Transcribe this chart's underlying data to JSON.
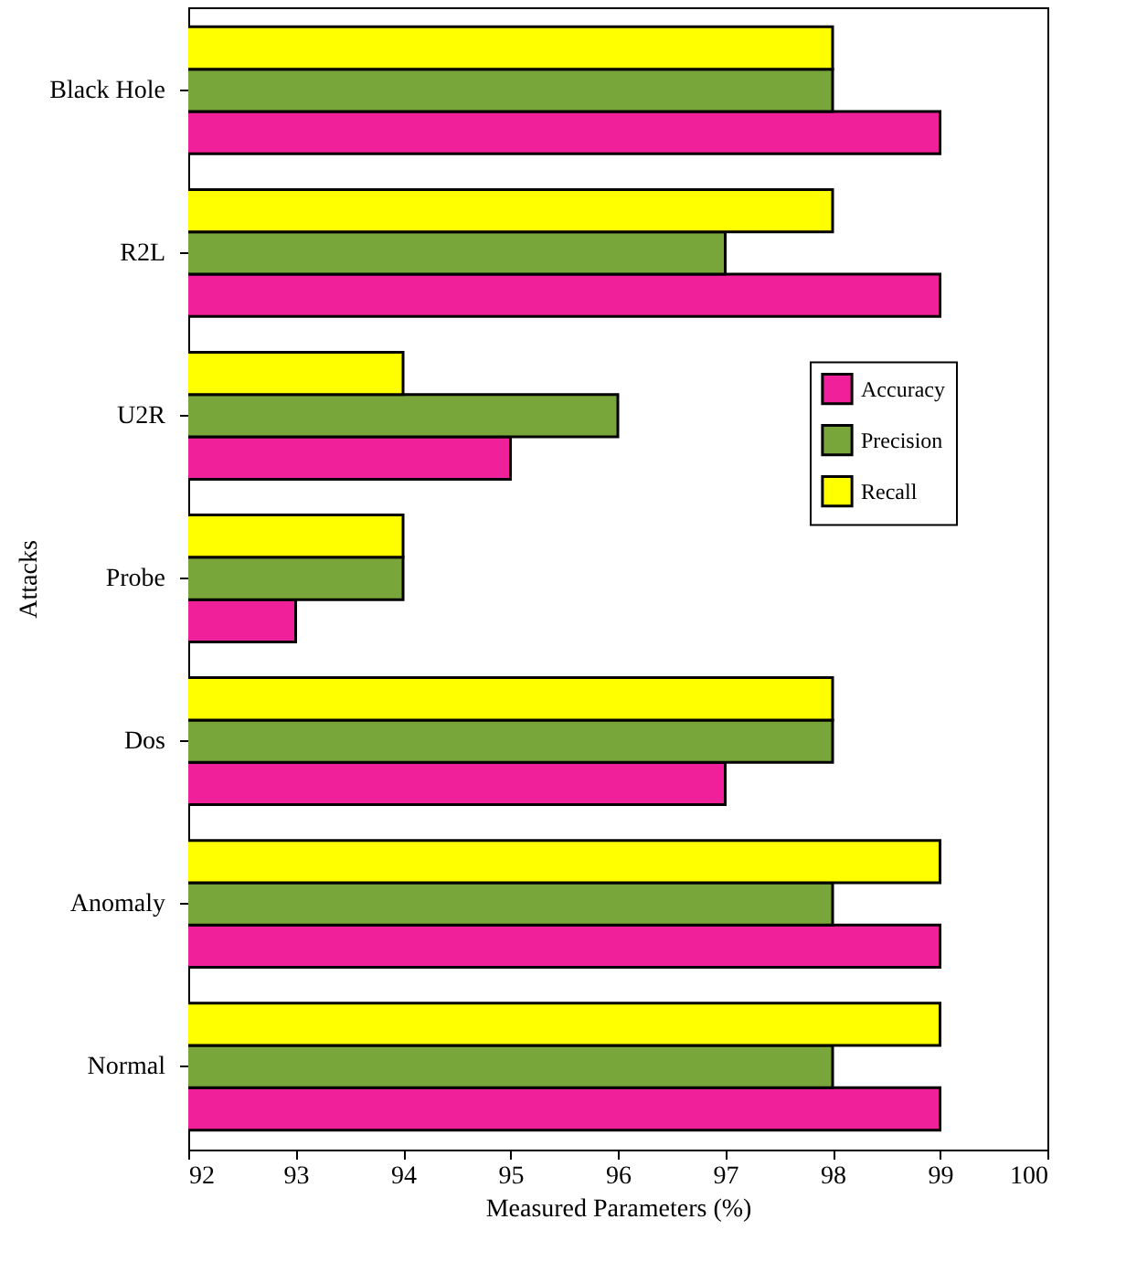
{
  "chart_data": {
    "type": "bar",
    "orientation": "horizontal",
    "xlabel": "Measured Parameters (%)",
    "ylabel": "Attacks",
    "categories": [
      "Black Hole",
      "R2L",
      "U2R",
      "Probe",
      "Dos",
      "Anomaly",
      "Normal"
    ],
    "series": [
      {
        "name": "Accuracy",
        "color": "#f0209a",
        "values": [
          99,
          99,
          95,
          93,
          97,
          99,
          99
        ]
      },
      {
        "name": "Precision",
        "color": "#78a63a",
        "values": [
          98,
          97,
          96,
          94,
          98,
          98,
          98
        ]
      },
      {
        "name": "Recall",
        "color": "#ffff00",
        "values": [
          98,
          98,
          94,
          94,
          98,
          99,
          99
        ]
      }
    ],
    "xlim": [
      92,
      100
    ],
    "xticks": [
      92,
      93,
      94,
      95,
      96,
      97,
      98,
      99,
      100
    ],
    "legend": "right"
  }
}
